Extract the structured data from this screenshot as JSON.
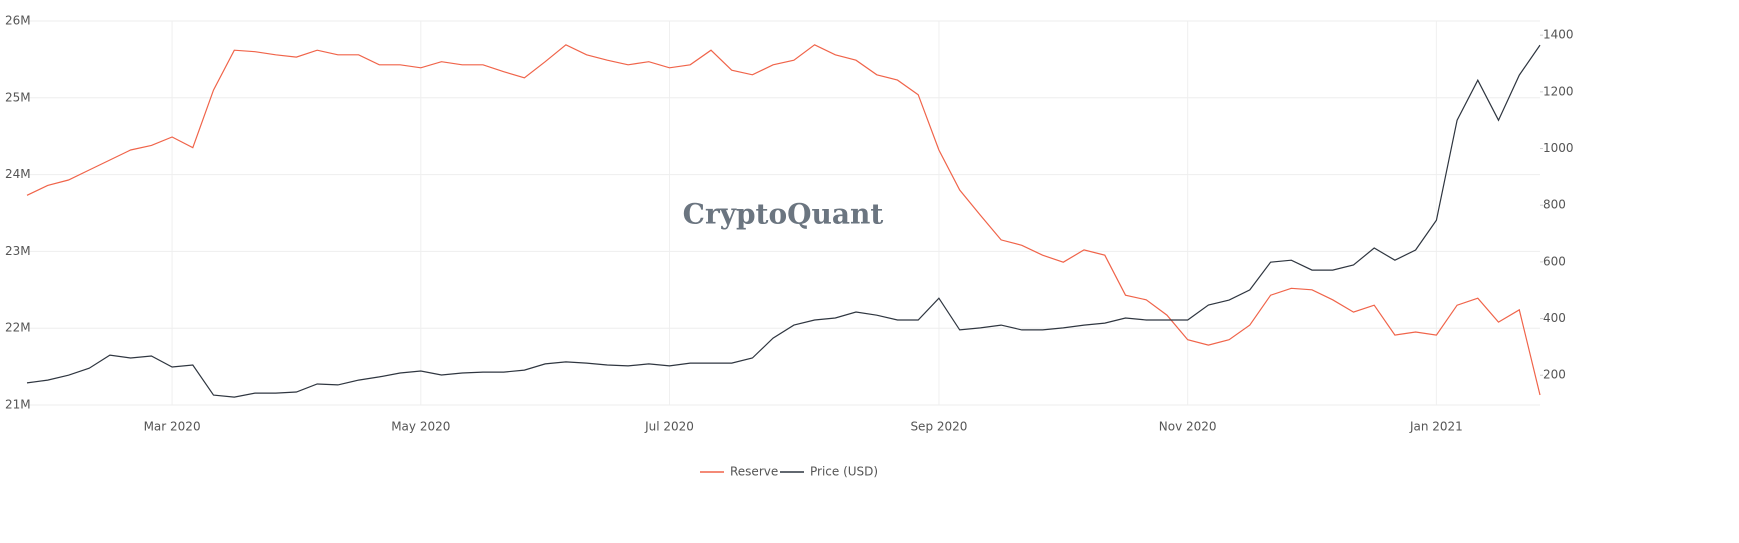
{
  "chart_data": {
    "type": "line",
    "watermark": "CryptoQuant",
    "categories": [
      null,
      null,
      null,
      null,
      null,
      null,
      null,
      "Mar 2020",
      null,
      null,
      null,
      null,
      null,
      null,
      null,
      null,
      null,
      null,
      null,
      "May 2020",
      null,
      null,
      null,
      null,
      null,
      null,
      null,
      null,
      null,
      null,
      null,
      "Jul 2020",
      null,
      null,
      null,
      null,
      null,
      null,
      null,
      null,
      null,
      null,
      null,
      null,
      "Sep 2020",
      null,
      null,
      null,
      null,
      null,
      null,
      null,
      null,
      null,
      null,
      null,
      "Nov 2020",
      null,
      null,
      null,
      null,
      null,
      null,
      null,
      null,
      null,
      null,
      null,
      "Jan 2021",
      null,
      null,
      null,
      null,
      null
    ],
    "series": [
      {
        "name": "Reserve",
        "color": "#f0644a",
        "axis": "y",
        "values": [
          23730000,
          23860000,
          23930000,
          24060000,
          24190000,
          24320000,
          24380000,
          24490000,
          24350000,
          25100000,
          25620000,
          25600000,
          25560000,
          25530000,
          25620000,
          25560000,
          25560000,
          25430000,
          25430000,
          25390000,
          25470000,
          25430000,
          25430000,
          25340000,
          25260000,
          25470000,
          25690000,
          25560000,
          25490000,
          25430000,
          25470000,
          25390000,
          25430000,
          25620000,
          25360000,
          25300000,
          25430000,
          25490000,
          25690000,
          25560000,
          25490000,
          25300000,
          25230000,
          25040000,
          24320000,
          23800000,
          23470000,
          23150000,
          23080000,
          22950000,
          22860000,
          23020000,
          22950000,
          22430000,
          22370000,
          22170000,
          21850000,
          21780000,
          21850000,
          22040000,
          22430000,
          22520000,
          22500000,
          22370000,
          22210000,
          22300000,
          21910000,
          21950000,
          21910000,
          22300000,
          22390000,
          22080000,
          22240000,
          21130000
        ]
      },
      {
        "name": "Price (USD)",
        "color": "#2f3640",
        "axis": "y2",
        "values": [
          173,
          183,
          200,
          225,
          271,
          261,
          268,
          229,
          236,
          130,
          123,
          137,
          137,
          141,
          169,
          166,
          183,
          194,
          208,
          215,
          201,
          208,
          211,
          211,
          218,
          240,
          247,
          243,
          236,
          233,
          240,
          233,
          243,
          243,
          243,
          261,
          331,
          377,
          395,
          402,
          423,
          412,
          395,
          395,
          472,
          360,
          367,
          377,
          360,
          360,
          367,
          377,
          384,
          402,
          395,
          395,
          395,
          448,
          465,
          501,
          599,
          606,
          571,
          571,
          589,
          649,
          606,
          642,
          747,
          1100,
          1241,
          1100,
          1259,
          1365
        ]
      }
    ],
    "ylim": [
      21000000,
      26000000
    ],
    "yticks": [
      {
        "value": 21000000,
        "label": "21M"
      },
      {
        "value": 22000000,
        "label": "22M"
      },
      {
        "value": 23000000,
        "label": "23M"
      },
      {
        "value": 24000000,
        "label": "24M"
      },
      {
        "value": 25000000,
        "label": "25M"
      },
      {
        "value": 26000000,
        "label": "26M"
      }
    ],
    "y2lim": [
      95,
      1450
    ],
    "y2ticks": [
      200,
      400,
      600,
      800,
      1000,
      1200,
      1400
    ],
    "grid": true,
    "legend": "bottom"
  }
}
